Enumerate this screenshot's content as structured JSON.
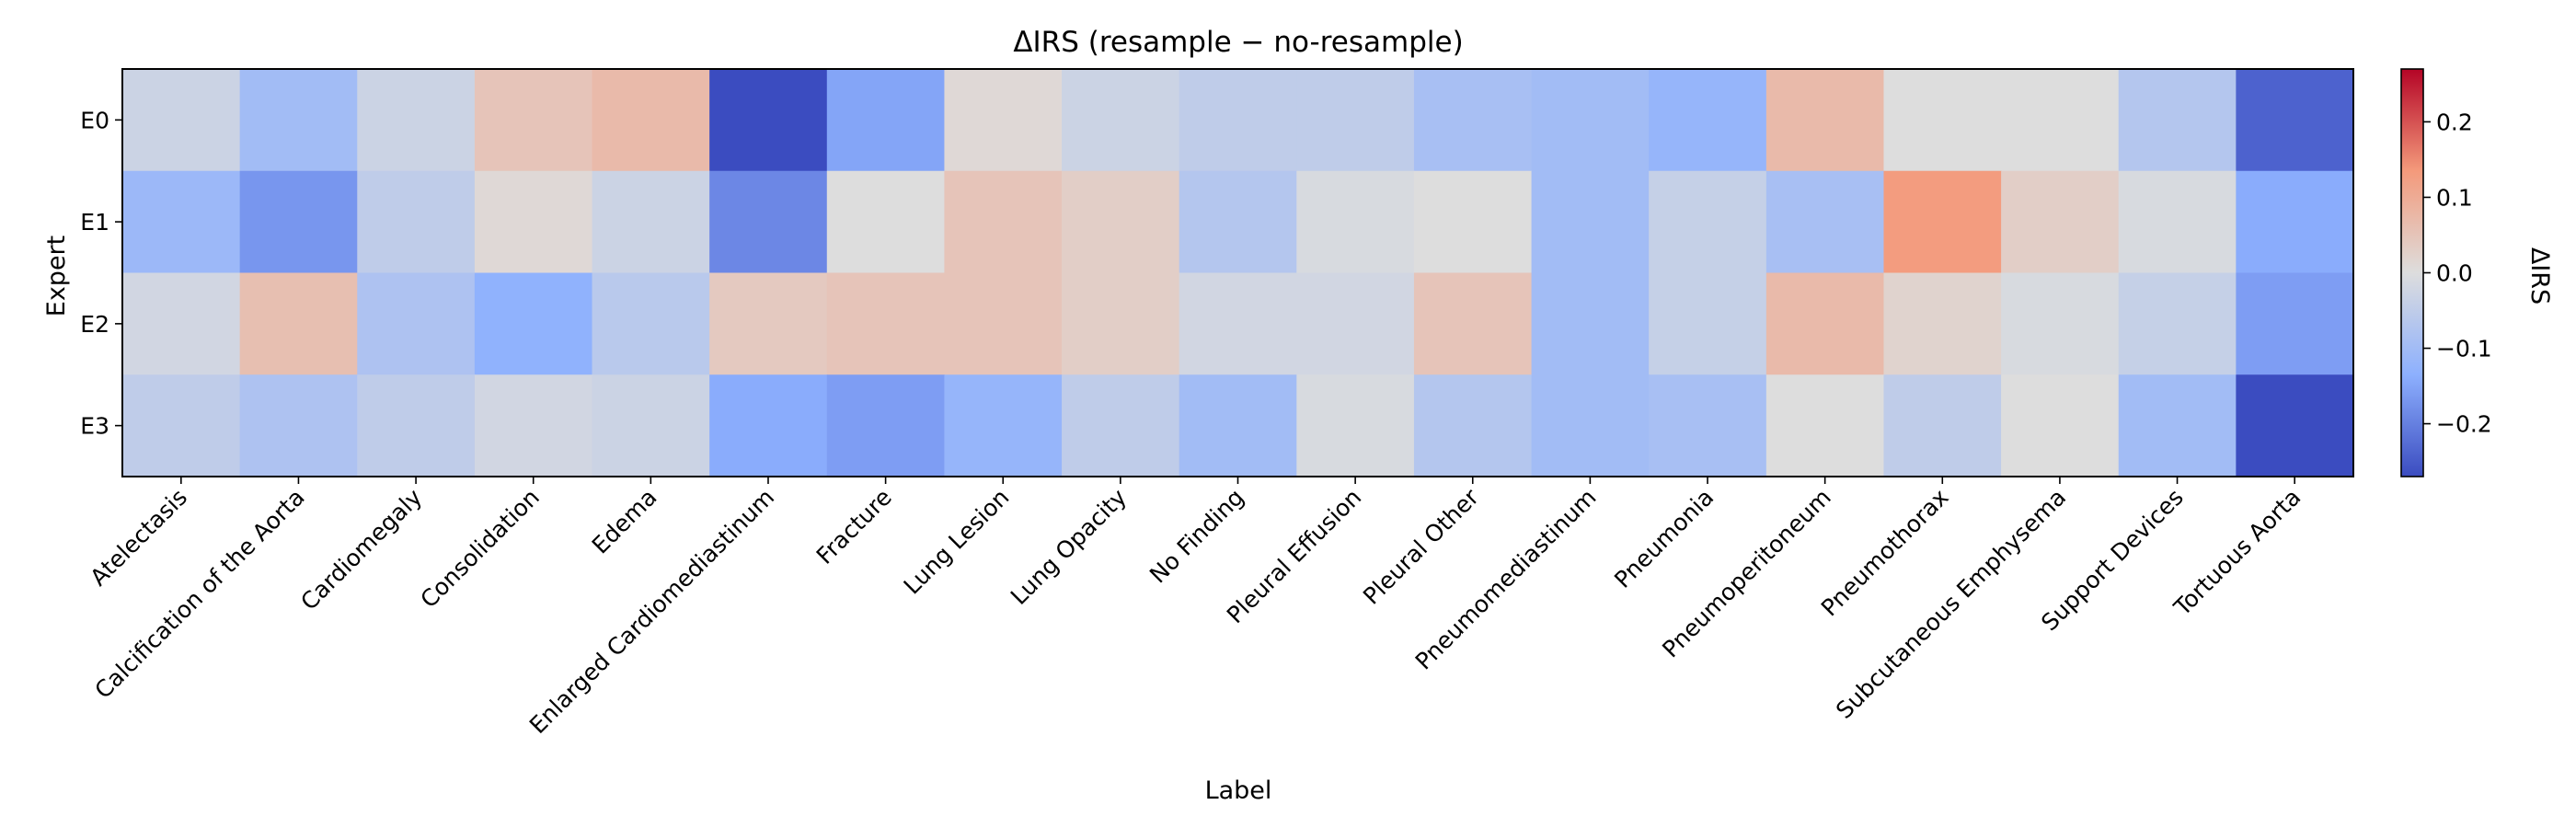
{
  "chart_data": {
    "type": "heatmap",
    "title": "ΔIRS (resample − no-resample)",
    "xlabel": "Label",
    "ylabel": "Expert",
    "colorbar_label": "ΔIRS",
    "colormap": "coolwarm",
    "vmin": -0.27,
    "vmax": 0.27,
    "colorbar_ticks": [
      0.2,
      0.1,
      0.0,
      -0.1,
      -0.2
    ],
    "colorbar_tick_labels": [
      "0.2",
      "0.1",
      "0.0",
      "−0.1",
      "−0.2"
    ],
    "x_categories": [
      "Atelectasis",
      "Calcification of the Aorta",
      "Cardiomegaly",
      "Consolidation",
      "Edema",
      "Enlarged Cardiomediastinum",
      "Fracture",
      "Lung Lesion",
      "Lung Opacity",
      "No Finding",
      "Pleural Effusion",
      "Pleural Other",
      "Pneumomediastinum",
      "Pneumonia",
      "Pneumoperitoneum",
      "Pneumothorax",
      "Subcutaneous Emphysema",
      "Support Devices",
      "Tortuous Aorta"
    ],
    "y_categories": [
      "E0",
      "E1",
      "E2",
      "E3"
    ],
    "values": [
      [
        -0.03,
        -0.1,
        -0.03,
        0.05,
        0.07,
        -0.27,
        -0.15,
        0.01,
        -0.03,
        -0.05,
        -0.05,
        -0.09,
        -0.1,
        -0.12,
        0.07,
        0.0,
        0.0,
        -0.07,
        -0.24
      ],
      [
        -0.11,
        -0.17,
        -0.05,
        0.01,
        -0.03,
        -0.19,
        0.0,
        0.05,
        0.03,
        -0.07,
        -0.01,
        0.0,
        -0.1,
        -0.04,
        -0.09,
        0.13,
        0.03,
        -0.01,
        -0.14
      ],
      [
        -0.02,
        0.06,
        -0.08,
        -0.13,
        -0.06,
        0.04,
        0.05,
        0.05,
        0.03,
        -0.02,
        -0.02,
        0.05,
        -0.1,
        -0.04,
        0.07,
        0.02,
        -0.01,
        -0.04,
        -0.16
      ],
      [
        -0.05,
        -0.08,
        -0.05,
        -0.02,
        -0.03,
        -0.14,
        -0.16,
        -0.12,
        -0.05,
        -0.1,
        -0.01,
        -0.07,
        -0.1,
        -0.09,
        0.0,
        -0.05,
        0.0,
        -0.1,
        -0.27
      ]
    ]
  }
}
